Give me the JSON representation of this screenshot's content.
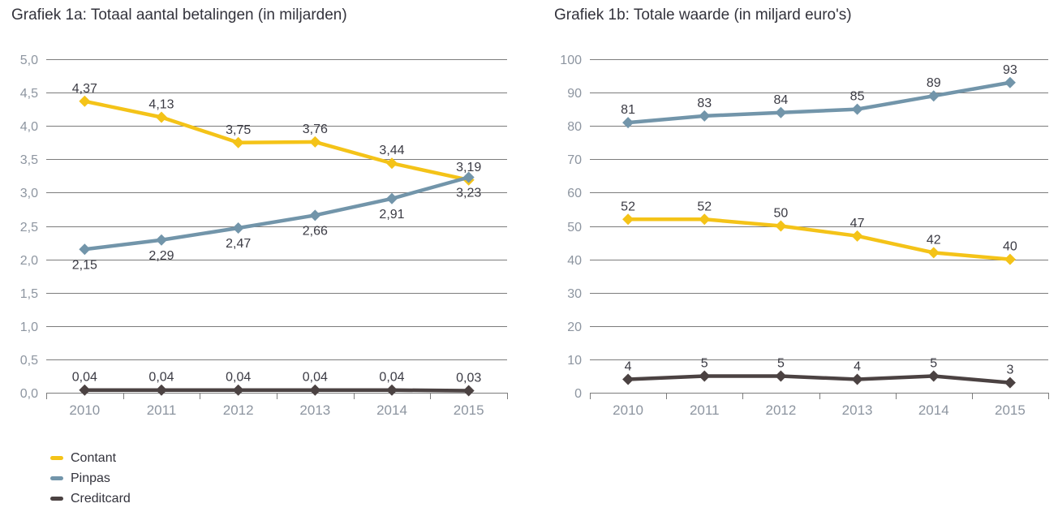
{
  "colors": {
    "background": "#FFFFFF",
    "title_text": "#33333C",
    "grid": "#7C7C7C",
    "axis_line": "#7C7C7C",
    "axis_labels": "#8D95A0",
    "data_labels": "#3B3B44",
    "contant": "#F4C318",
    "pinpas": "#7295AA",
    "creditcard": "#4B4242"
  },
  "legend": {
    "items": [
      {
        "label": "Contant",
        "color": "#F4C318"
      },
      {
        "label": "Pinpas",
        "color": "#7295AA"
      },
      {
        "label": "Creditcard",
        "color": "#4B4242"
      }
    ]
  },
  "chart_data": [
    {
      "type": "line",
      "title": "Grafiek 1a: Totaal aantal betalingen (in miljarden)",
      "categories": [
        "2010",
        "2011",
        "2012",
        "2013",
        "2014",
        "2015"
      ],
      "series": [
        {
          "name": "Contant",
          "color": "#F4C318",
          "marker": "diamond",
          "label_position": "above",
          "values": [
            4.37,
            4.13,
            3.75,
            3.76,
            3.44,
            3.19
          ],
          "labels": [
            "4,37",
            "4,13",
            "3,75",
            "3,76",
            "3,44",
            "3,19"
          ]
        },
        {
          "name": "Pinpas",
          "color": "#7295AA",
          "marker": "diamond",
          "label_position": "below",
          "values": [
            2.15,
            2.29,
            2.47,
            2.66,
            2.91,
            3.23
          ],
          "labels": [
            "2,15",
            "2,29",
            "2,47",
            "2,66",
            "2,91",
            "3,23"
          ]
        },
        {
          "name": "Creditcard",
          "color": "#4B4242",
          "marker": "diamond",
          "label_position": "above",
          "values": [
            0.04,
            0.04,
            0.04,
            0.04,
            0.04,
            0.03
          ],
          "labels": [
            "0,04",
            "0,04",
            "0,04",
            "0,04",
            "0,04",
            "0,03"
          ]
        }
      ],
      "xlabel": "",
      "ylabel": "",
      "ylim": [
        0,
        5
      ],
      "ytick_labels": [
        "0,0",
        "0,5",
        "1,0",
        "1,5",
        "2,0",
        "2,5",
        "3,0",
        "3,5",
        "4,0",
        "4,5",
        "5,0"
      ],
      "grid": true,
      "legend_position": "bottom-left"
    },
    {
      "type": "line",
      "title": "Grafiek 1b: Totale waarde (in miljard euro's)",
      "categories": [
        "2010",
        "2011",
        "2012",
        "2013",
        "2014",
        "2015"
      ],
      "series": [
        {
          "name": "Pinpas",
          "color": "#7295AA",
          "marker": "diamond",
          "label_position": "above",
          "values": [
            81,
            83,
            84,
            85,
            89,
            93
          ],
          "labels": [
            "81",
            "83",
            "84",
            "85",
            "89",
            "93"
          ]
        },
        {
          "name": "Contant",
          "color": "#F4C318",
          "marker": "diamond",
          "label_position": "above",
          "values": [
            52,
            52,
            50,
            47,
            42,
            40
          ],
          "labels": [
            "52",
            "52",
            "50",
            "47",
            "42",
            "40"
          ]
        },
        {
          "name": "Creditcard",
          "color": "#4B4242",
          "marker": "diamond",
          "label_position": "above",
          "values": [
            4,
            5,
            5,
            4,
            5,
            3
          ],
          "labels": [
            "4",
            "5",
            "5",
            "4",
            "5",
            "3"
          ]
        }
      ],
      "xlabel": "",
      "ylabel": "",
      "ylim": [
        0,
        100
      ],
      "ytick_labels": [
        "0",
        "10",
        "20",
        "30",
        "40",
        "50",
        "60",
        "70",
        "80",
        "90",
        "100"
      ],
      "grid": true,
      "legend_position": "none"
    }
  ]
}
